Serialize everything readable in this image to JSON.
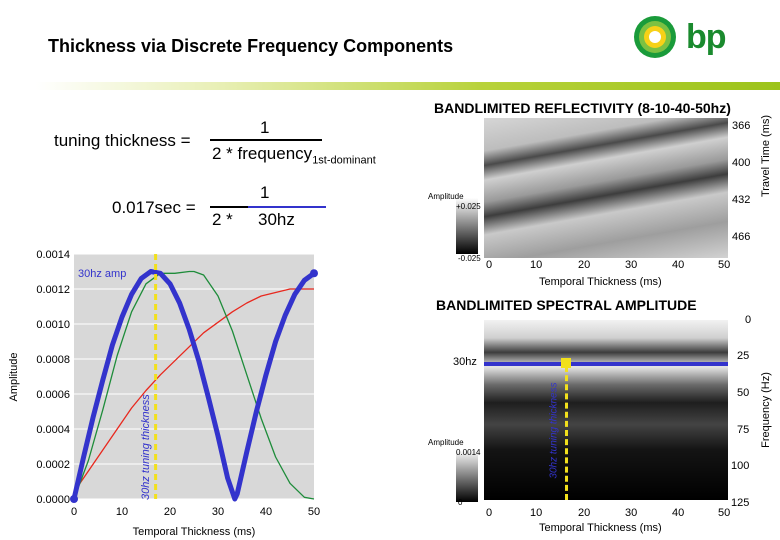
{
  "header": {
    "title": "Thickness via Discrete Frequency Components",
    "logo_text": "bp"
  },
  "formula": {
    "lhs1": "tuning thickness =",
    "num1": "1",
    "den1_main": "2 * frequency",
    "den1_sub": "1st-dominant",
    "lhs2": "0.017sec =",
    "num2": "1",
    "den2_left": "2 *",
    "den2_right": "30hz"
  },
  "reflectivity": {
    "title": "BANDLIMITED REFLECTIVITY (8-10-40-50hz)",
    "yaxis_label": "Travel Time (ms)",
    "yticks": [
      "366",
      "400",
      "432",
      "466"
    ],
    "xticks": [
      "0",
      "10",
      "20",
      "30",
      "40",
      "50"
    ],
    "xlabel": "Temporal Thickness (ms)",
    "colorbar_title": "Amplitude",
    "colorbar_max": "+0.025",
    "colorbar_min": "-0.025"
  },
  "spectral": {
    "title": "BANDLIMITED SPECTRAL AMPLITUDE",
    "yaxis_label": "Frequency (Hz)",
    "yticks": [
      "0",
      "25",
      "50",
      "75",
      "100",
      "125"
    ],
    "xticks": [
      "0",
      "10",
      "20",
      "30",
      "40",
      "50"
    ],
    "xlabel": "Temporal Thickness (ms)",
    "freq_marker": "30hz",
    "tuning_label": "30hz tuning thickness",
    "colorbar_title": "Amplitude",
    "colorbar_max": "0.0014",
    "colorbar_min": "0"
  },
  "chart_data": {
    "type": "line",
    "title": "",
    "xlabel": "Temporal Thickness (ms)",
    "ylabel": "Amplitude",
    "xlim": [
      0,
      50
    ],
    "ylim": [
      0,
      0.0014
    ],
    "xticks": [
      "0",
      "10",
      "20",
      "30",
      "40",
      "50"
    ],
    "yticks": [
      "0.0000",
      "0.0002",
      "0.0004",
      "0.0006",
      "0.0008",
      "0.0010",
      "0.0012",
      "0.0014"
    ],
    "grid": true,
    "annotations": [
      "30hz amp",
      "30hz tuning thickness"
    ],
    "tuning_x": 17,
    "series": [
      {
        "color": "#3333cc",
        "x": [
          0,
          2,
          4,
          6,
          8,
          10,
          12,
          14,
          16,
          18,
          20,
          22,
          24,
          26,
          28,
          30,
          32,
          33.5,
          34,
          36,
          38,
          40,
          42,
          44,
          46,
          48,
          50
        ],
        "y": [
          0.0,
          0.00024,
          0.00047,
          0.00068,
          0.00088,
          0.00104,
          0.00117,
          0.00126,
          0.0013,
          0.00129,
          0.00123,
          0.00112,
          0.00097,
          0.00079,
          0.00058,
          0.00036,
          0.00012,
          0.0,
          3e-05,
          0.00027,
          0.0005,
          0.00071,
          0.0009,
          0.00105,
          0.00117,
          0.00125,
          0.00129
        ]
      },
      {
        "color": "#1e8c3a",
        "x": [
          0,
          3,
          6,
          9,
          12,
          15,
          18,
          21,
          24,
          25,
          27,
          30,
          33,
          36,
          39,
          42,
          45,
          48,
          50
        ],
        "y": [
          0.0,
          0.00022,
          0.00051,
          0.00082,
          0.00107,
          0.00123,
          0.00129,
          0.00129,
          0.0013,
          0.0013,
          0.00128,
          0.00116,
          0.00096,
          0.00071,
          0.00046,
          0.00024,
          9e-05,
          1e-05,
          0.0
        ]
      },
      {
        "color": "#e8281e",
        "x": [
          0,
          2,
          4,
          6,
          8,
          10,
          12,
          15,
          18,
          21,
          24,
          27,
          30,
          33,
          36,
          39,
          42,
          45,
          48,
          50
        ],
        "y": [
          4e-05,
          0.00012,
          0.0002,
          0.00028,
          0.00036,
          0.00044,
          0.00052,
          0.00062,
          0.00071,
          0.00079,
          0.00087,
          0.00095,
          0.00101,
          0.00107,
          0.00112,
          0.00116,
          0.00118,
          0.0012,
          0.0012,
          0.0012
        ]
      }
    ]
  }
}
